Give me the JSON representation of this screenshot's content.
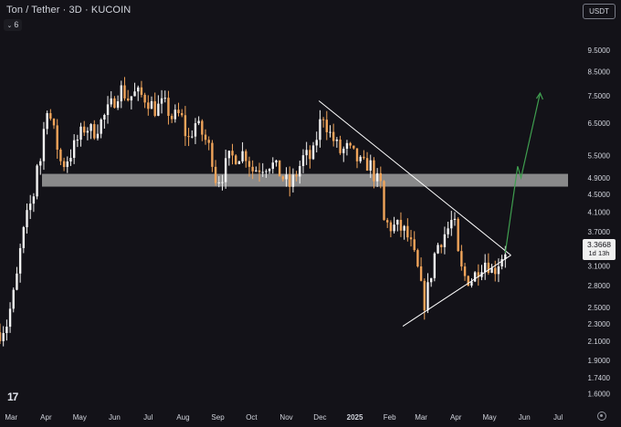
{
  "header": {
    "title": "Ton / Tether · 3D · KUCOIN",
    "indicator_count": "6",
    "currency": "USDT"
  },
  "price_tag": {
    "price": "3.3668",
    "countdown": "1d 13h"
  },
  "logo_text": "17",
  "colors": {
    "background": "#131218",
    "up_candle": "#f2f2f2",
    "down_candle": "#f0a45a",
    "zone": "#b7b7b7",
    "triangle": "#ffffff",
    "projection": "#3f9e4f",
    "axis_text": "#d1d4dc"
  },
  "chart_data": {
    "type": "candlestick",
    "y_scale": "log",
    "ylim": [
      1.48,
      11.2
    ],
    "y_ticks": [
      "9.5000",
      "8.5000",
      "7.5000",
      "6.5000",
      "5.5000",
      "4.9000",
      "4.5000",
      "4.1000",
      "3.7000",
      "3.4000",
      "3.1000",
      "2.8000",
      "2.5000",
      "2.3000",
      "2.1000",
      "1.9000",
      "1.7400",
      "1.6000"
    ],
    "x_ticks": [
      "Mar",
      "Apr",
      "May",
      "Jun",
      "Jul",
      "Aug",
      "Sep",
      "Oct",
      "Nov",
      "Dec",
      "2025",
      "Feb",
      "Mar",
      "Apr",
      "May",
      "Jun",
      "Jul"
    ],
    "x_ticks_bold": [
      "2025"
    ],
    "x_range": [
      "2024-02-20",
      "2025-07-18"
    ],
    "support_zone": [
      4.68,
      5.0
    ],
    "triangle": {
      "upper": [
        [
          "2024-11-30",
          7.3
        ],
        [
          "2025-05-20",
          3.28
        ]
      ],
      "lower": [
        [
          "2025-03-01",
          2.38
        ],
        [
          "2025-05-20",
          3.28
        ]
      ]
    },
    "projection": [
      [
        "2025-05-15",
        3.32
      ],
      [
        "2025-05-26",
        5.2
      ],
      [
        "2025-05-29",
        4.9
      ],
      [
        "2025-06-15",
        7.6
      ]
    ],
    "close_path": [
      [
        "2024-02-20",
        2.2
      ],
      [
        "2024-02-26",
        2.3
      ],
      [
        "2024-03-05",
        2.8
      ],
      [
        "2024-03-10",
        3.5
      ],
      [
        "2024-03-16",
        4.1
      ],
      [
        "2024-03-21",
        4.5
      ],
      [
        "2024-03-24",
        5.3
      ],
      [
        "2024-03-28",
        5.4
      ],
      [
        "2024-04-01",
        7.3
      ],
      [
        "2024-04-08",
        6.2
      ],
      [
        "2024-04-15",
        5.2
      ],
      [
        "2024-04-22",
        5.5
      ],
      [
        "2024-04-28",
        5.9
      ],
      [
        "2024-05-06",
        6.4
      ],
      [
        "2024-05-13",
        6.2
      ],
      [
        "2024-05-21",
        6.6
      ],
      [
        "2024-05-30",
        7.2
      ],
      [
        "2024-06-06",
        7.8
      ],
      [
        "2024-06-13",
        7.4
      ],
      [
        "2024-06-20",
        7.6
      ],
      [
        "2024-06-29",
        7.4
      ],
      [
        "2024-07-07",
        7.0
      ],
      [
        "2024-07-15",
        7.2
      ],
      [
        "2024-07-22",
        6.7
      ],
      [
        "2024-07-30",
        6.8
      ],
      [
        "2024-08-05",
        5.9
      ],
      [
        "2024-08-12",
        6.5
      ],
      [
        "2024-08-19",
        6.1
      ],
      [
        "2024-08-26",
        5.6
      ],
      [
        "2024-08-30",
        4.9
      ],
      [
        "2024-09-04",
        4.9
      ],
      [
        "2024-09-10",
        5.4
      ],
      [
        "2024-09-18",
        5.5
      ],
      [
        "2024-09-25",
        5.6
      ],
      [
        "2024-10-02",
        5.1
      ],
      [
        "2024-10-10",
        5.2
      ],
      [
        "2024-10-18",
        5.3
      ],
      [
        "2024-10-24",
        5.1
      ],
      [
        "2024-10-29",
        4.9
      ],
      [
        "2024-11-04",
        4.7
      ],
      [
        "2024-11-10",
        5.0
      ],
      [
        "2024-11-17",
        5.5
      ],
      [
        "2024-11-24",
        5.4
      ],
      [
        "2024-11-30",
        6.4
      ],
      [
        "2024-12-04",
        6.8
      ],
      [
        "2024-12-09",
        6.2
      ],
      [
        "2024-12-14",
        5.9
      ],
      [
        "2024-12-19",
        5.6
      ],
      [
        "2024-12-25",
        5.7
      ],
      [
        "2024-12-31",
        5.5
      ],
      [
        "2025-01-08",
        5.2
      ],
      [
        "2025-01-14",
        5.3
      ],
      [
        "2025-01-19",
        4.9
      ],
      [
        "2025-01-24",
        4.7
      ],
      [
        "2025-01-27",
        3.9
      ],
      [
        "2025-02-02",
        3.8
      ],
      [
        "2025-02-08",
        3.8
      ],
      [
        "2025-02-15",
        3.7
      ],
      [
        "2025-02-21",
        3.4
      ],
      [
        "2025-02-28",
        2.9
      ],
      [
        "2025-03-03",
        2.5
      ],
      [
        "2025-03-09",
        2.9
      ],
      [
        "2025-03-14",
        3.4
      ],
      [
        "2025-03-20",
        3.6
      ],
      [
        "2025-03-26",
        3.8
      ],
      [
        "2025-03-30",
        4.0
      ],
      [
        "2025-04-04",
        3.1
      ],
      [
        "2025-04-10",
        2.9
      ],
      [
        "2025-04-16",
        2.9
      ],
      [
        "2025-04-22",
        3.1
      ],
      [
        "2025-04-28",
        3.2
      ],
      [
        "2025-05-04",
        3.0
      ],
      [
        "2025-05-10",
        3.2
      ],
      [
        "2025-05-15",
        3.37
      ]
    ]
  }
}
